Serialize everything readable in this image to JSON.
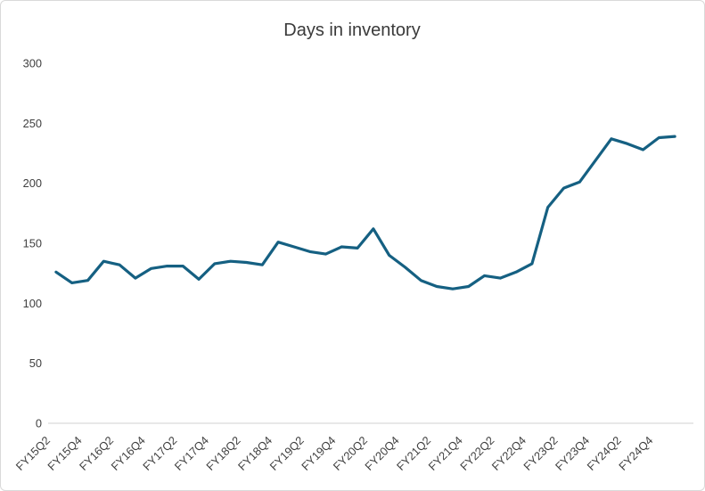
{
  "window": {
    "background": "#ffffff",
    "border_color": "#d9d9d9"
  },
  "chart_data": {
    "type": "line",
    "title": "Days in inventory",
    "xlabel": "",
    "ylabel": "",
    "x": [
      "FY15Q2",
      "FY15Q3",
      "FY15Q4",
      "FY16Q1",
      "FY16Q2",
      "FY16Q3",
      "FY16Q4",
      "FY17Q1",
      "FY17Q2",
      "FY17Q3",
      "FY17Q4",
      "FY18Q1",
      "FY18Q2",
      "FY18Q3",
      "FY18Q4",
      "FY19Q1",
      "FY19Q2",
      "FY19Q3",
      "FY19Q4",
      "FY20Q1",
      "FY20Q2",
      "FY20Q3",
      "FY20Q4",
      "FY21Q1",
      "FY21Q2",
      "FY21Q3",
      "FY21Q4",
      "FY22Q1",
      "FY22Q2",
      "FY22Q3",
      "FY22Q4",
      "FY23Q1",
      "FY23Q2",
      "FY23Q3",
      "FY23Q4",
      "FY24Q1",
      "FY24Q2",
      "FY24Q3",
      "FY24Q4",
      "FY25Q1"
    ],
    "values": [
      126,
      117,
      119,
      135,
      132,
      121,
      129,
      131,
      131,
      120,
      133,
      135,
      134,
      132,
      151,
      147,
      143,
      141,
      147,
      146,
      162,
      140,
      130,
      119,
      114,
      112,
      114,
      123,
      121,
      126,
      133,
      180,
      196,
      201,
      219,
      237,
      233,
      228,
      238,
      239
    ],
    "x_tick_labels": [
      "FY15Q2",
      "FY15Q4",
      "FY16Q2",
      "FY16Q4",
      "FY17Q2",
      "FY17Q4",
      "FY18Q2",
      "FY18Q4",
      "FY19Q2",
      "FY19Q4",
      "FY20Q2",
      "FY20Q4",
      "FY21Q2",
      "FY21Q4",
      "FY22Q2",
      "FY22Q4",
      "FY23Q2",
      "FY23Q4",
      "FY24Q2",
      "FY24Q4"
    ],
    "x_tick_every": 2,
    "y_ticks": [
      0,
      50,
      100,
      150,
      200,
      250,
      300
    ],
    "ylim": [
      0,
      300
    ],
    "grid": false,
    "legend": "none",
    "line_color": "#156082",
    "axis_color": "#d9d9d9",
    "label_color": "#404040",
    "title_color": "#3a3a3a"
  }
}
